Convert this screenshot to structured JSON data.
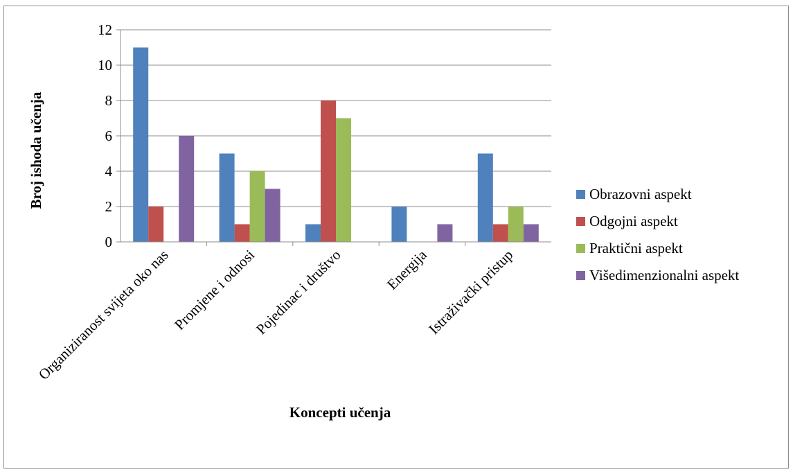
{
  "chart_data": {
    "type": "bar",
    "title": "",
    "xlabel": "Koncepti učenja",
    "ylabel": "Broj ishoda  učenja",
    "ylim": [
      0,
      12
    ],
    "yticks": [
      0,
      2,
      4,
      6,
      8,
      10,
      12
    ],
    "grid": true,
    "legend_position": "right",
    "categories": [
      "Organiziranost svijeta oko nas",
      "Promjene i odnosi",
      "Pojedinac i društvo",
      "Energija",
      "Istraživački pristup"
    ],
    "series": [
      {
        "name": "Obrazovni aspekt",
        "color": "#4f81bd",
        "values": [
          11,
          5,
          1,
          2,
          5
        ]
      },
      {
        "name": "Odgojni aspekt",
        "color": "#c0504d",
        "values": [
          2,
          1,
          8,
          0,
          1
        ]
      },
      {
        "name": "Praktični aspekt",
        "color": "#9bbb59",
        "values": [
          0,
          4,
          7,
          0,
          2
        ]
      },
      {
        "name": "Višedimenzionalni aspekt",
        "color": "#8064a2",
        "values": [
          6,
          3,
          0,
          1,
          1
        ]
      }
    ]
  }
}
